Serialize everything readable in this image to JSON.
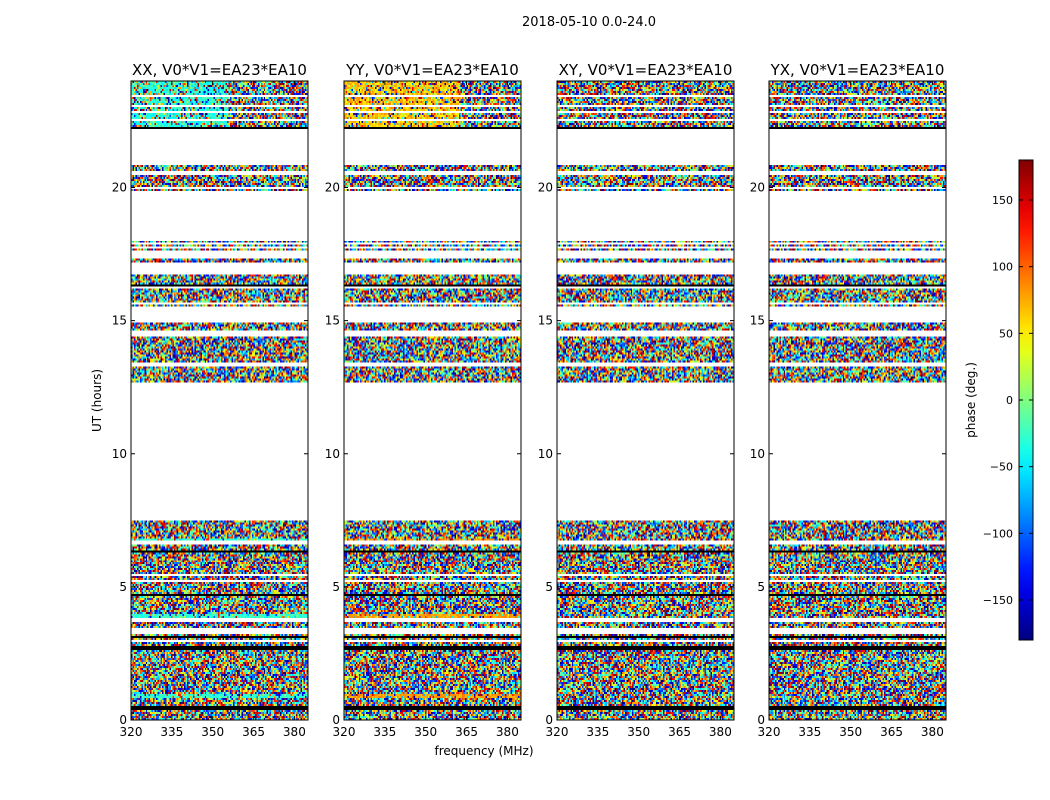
{
  "figure": {
    "suptitle": "2018-05-10 0.0-24.0"
  },
  "chart_data": [
    {
      "type": "heatmap",
      "title": "XX, V0*V1=EA23*EA10",
      "xlabel": "",
      "ylabel": "UT (hours)",
      "xlim": [
        320,
        385
      ],
      "ylim": [
        0,
        24
      ],
      "xticks": [
        320,
        335,
        350,
        365,
        380
      ],
      "yticks": [
        0,
        5,
        10,
        15,
        20
      ],
      "tint": "cyan"
    },
    {
      "type": "heatmap",
      "title": "YY, V0*V1=EA23*EA10",
      "xlabel": "frequency (MHz)",
      "ylabel": "",
      "xlim": [
        320,
        385
      ],
      "ylim": [
        0,
        24
      ],
      "xticks": [
        320,
        335,
        350,
        365,
        380
      ],
      "yticks": [
        0,
        5,
        10,
        15,
        20
      ],
      "tint": "orange"
    },
    {
      "type": "heatmap",
      "title": "XY, V0*V1=EA23*EA10",
      "xlabel": "",
      "ylabel": "",
      "xlim": [
        320,
        385
      ],
      "ylim": [
        0,
        24
      ],
      "xticks": [
        320,
        335,
        350,
        365,
        380
      ],
      "yticks": [
        0,
        5,
        10,
        15,
        20
      ],
      "tint": "none"
    },
    {
      "type": "heatmap",
      "title": "YX, V0*V1=EA23*EA10",
      "xlabel": "",
      "ylabel": "",
      "xlim": [
        320,
        385
      ],
      "ylim": [
        0,
        24
      ],
      "xticks": [
        320,
        335,
        350,
        365,
        380
      ],
      "yticks": [
        0,
        5,
        10,
        15,
        20
      ],
      "tint": "none"
    }
  ],
  "colorbar": {
    "label": "phase (deg.)",
    "range": [
      -180,
      180
    ],
    "ticks": [
      -150,
      -100,
      -50,
      0,
      50,
      100,
      150
    ],
    "tick_labels": [
      "−150",
      "−100",
      "−50",
      "0",
      "50",
      "100",
      "150"
    ]
  },
  "data_bands_ut": [
    [
      0.0,
      2.9
    ],
    [
      3.0,
      3.25
    ],
    [
      3.45,
      3.65
    ],
    [
      3.8,
      4.1
    ],
    [
      4.15,
      5.15
    ],
    [
      5.25,
      5.4
    ],
    [
      5.5,
      6.6
    ],
    [
      6.75,
      7.5
    ],
    [
      12.7,
      13.3
    ],
    [
      13.4,
      14.4
    ],
    [
      14.65,
      14.9
    ],
    [
      15.5,
      15.6
    ],
    [
      15.7,
      16.2
    ],
    [
      16.25,
      16.75
    ],
    [
      17.2,
      17.3
    ],
    [
      17.45,
      17.5
    ],
    [
      17.65,
      17.7
    ],
    [
      17.8,
      17.85
    ],
    [
      17.95,
      18.0
    ],
    [
      19.85,
      19.95
    ],
    [
      20.0,
      20.5
    ],
    [
      20.6,
      20.85
    ],
    [
      22.2,
      22.5
    ],
    [
      22.55,
      22.8
    ],
    [
      22.9,
      23.05
    ],
    [
      23.1,
      23.4
    ],
    [
      23.5,
      23.75
    ],
    [
      23.8,
      24.0
    ]
  ],
  "flag_lines_ut": [
    0.45,
    2.7,
    3.1,
    4.7,
    6.35,
    16.3,
    22.2
  ]
}
